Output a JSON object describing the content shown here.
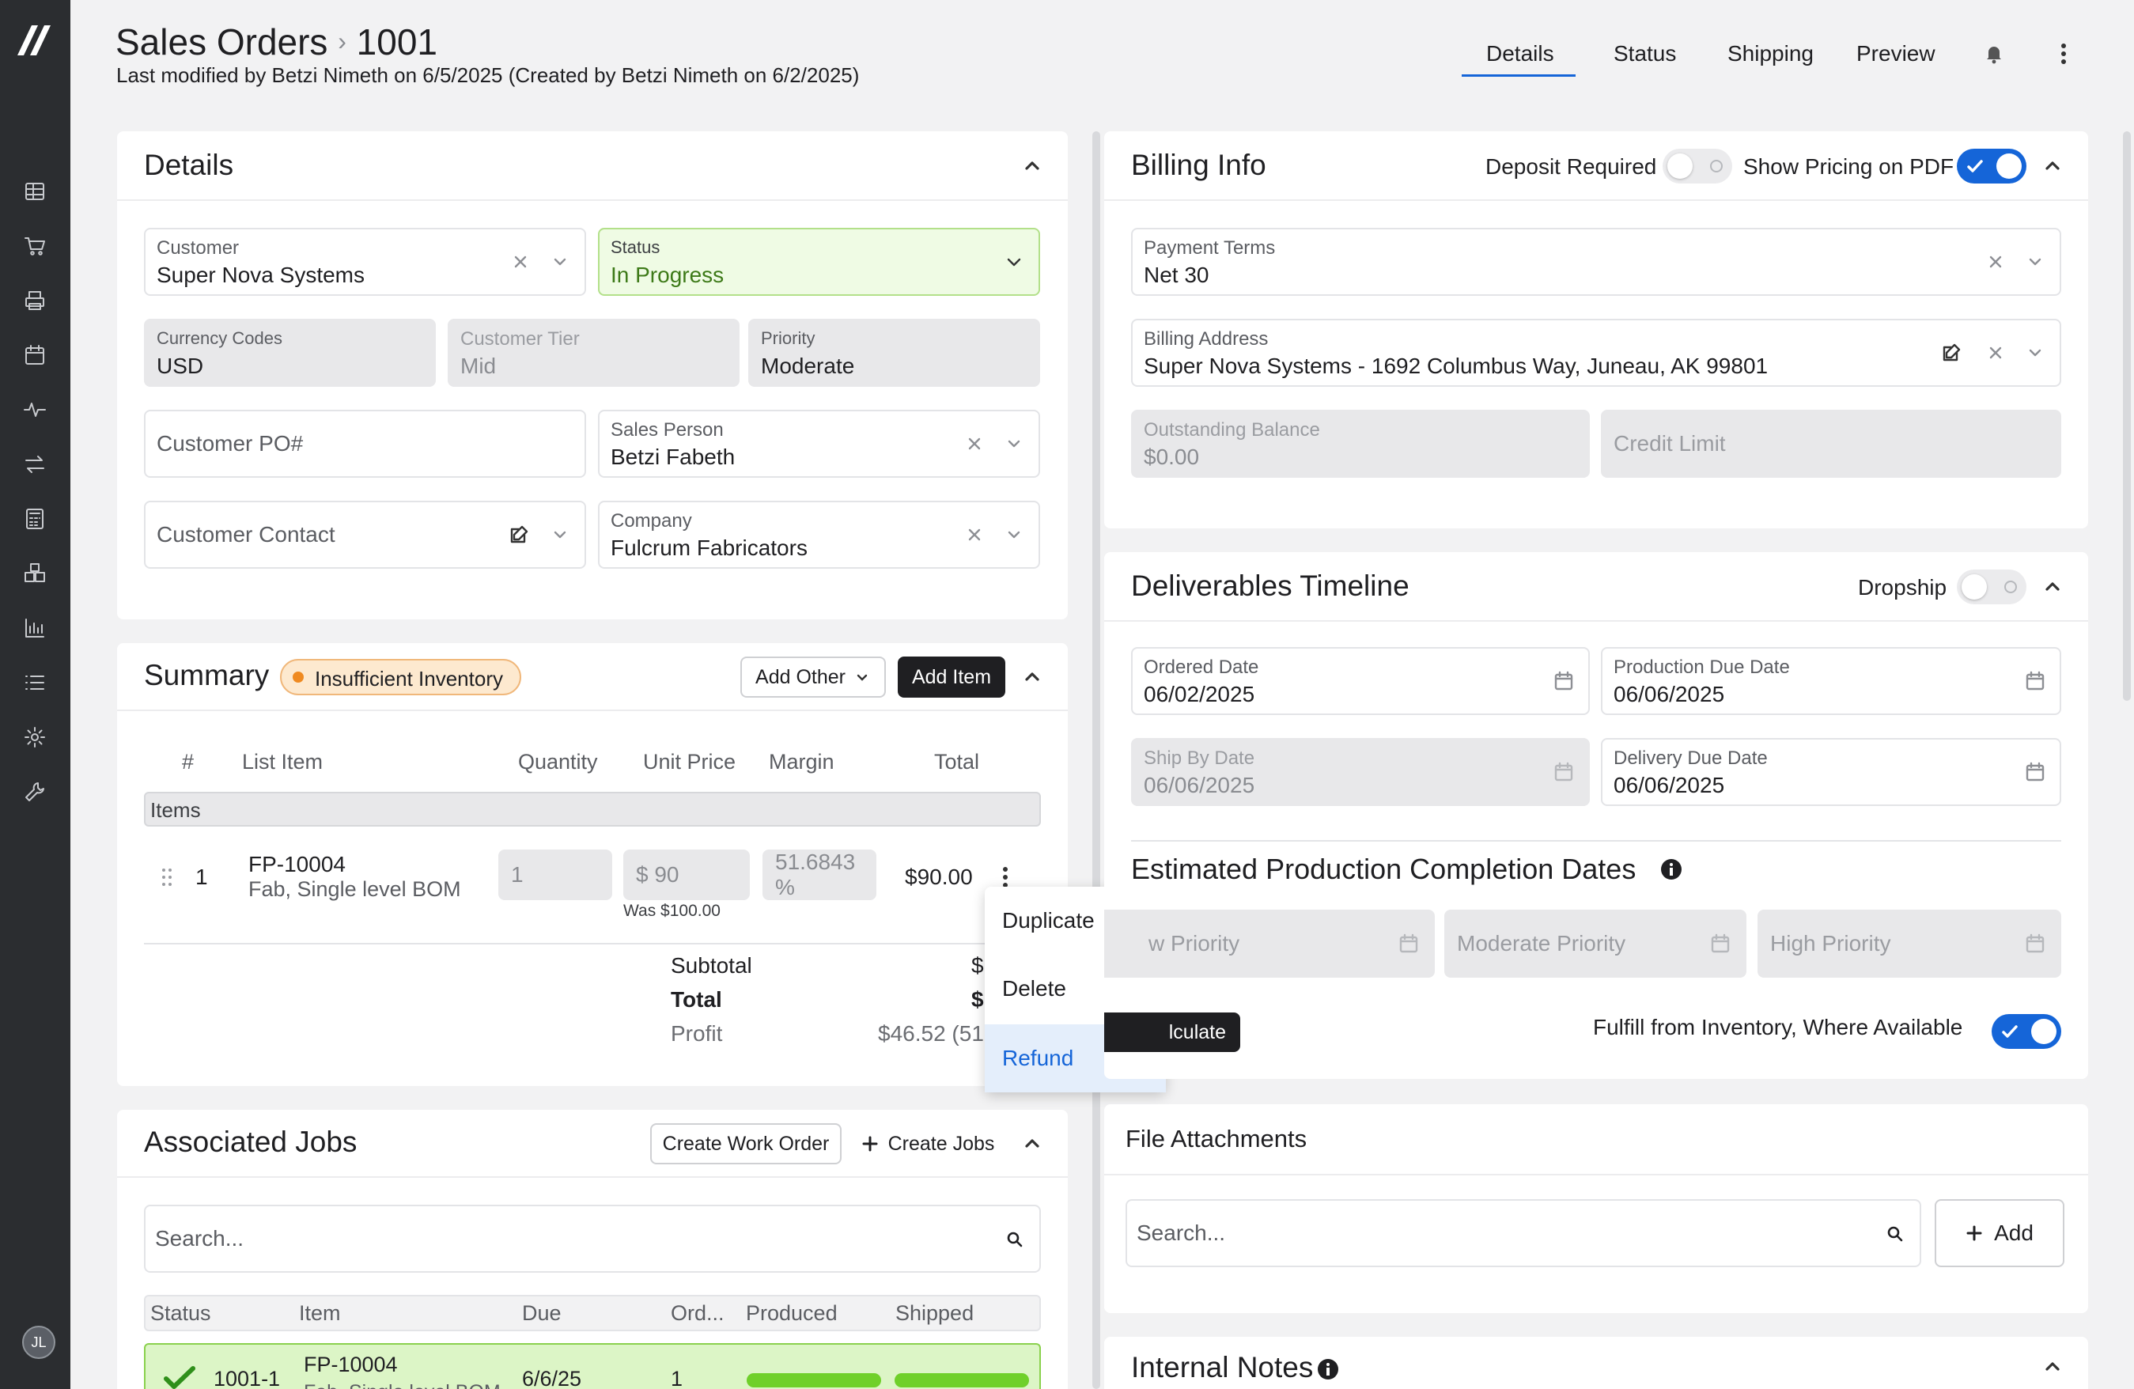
{
  "header": {
    "title": "Sales Orders",
    "breadcrumb_sep": "›",
    "record_id": "1001",
    "subtitle": "Last modified by Betzi Nimeth on 6/5/2025 (Created by Betzi Nimeth on 6/2/2025)",
    "tabs": [
      {
        "label": "Details",
        "active": true
      },
      {
        "label": "Status"
      },
      {
        "label": "Shipping"
      },
      {
        "label": "Preview"
      }
    ]
  },
  "sidebar": {
    "icons": [
      "dashboard-icon",
      "cart-icon",
      "printer-icon",
      "calendar-icon",
      "activity-icon",
      "swap-icon",
      "calculator-icon",
      "boxes-icon",
      "chart-icon",
      "list-icon",
      "gear-icon",
      "wrench-icon"
    ],
    "user_initials": "JL"
  },
  "details": {
    "title": "Details",
    "customer": {
      "label": "Customer",
      "value": "Super Nova Systems"
    },
    "status": {
      "label": "Status",
      "value": "In Progress"
    },
    "currency": {
      "label": "Currency Codes",
      "value": "USD"
    },
    "customer_tier": {
      "label": "Customer Tier",
      "value": "Mid"
    },
    "priority": {
      "label": "Priority",
      "value": "Moderate"
    },
    "customer_po": {
      "placeholder": "Customer PO#"
    },
    "sales_person": {
      "label": "Sales Person",
      "value": "Betzi Fabeth"
    },
    "customer_contact": {
      "placeholder": "Customer Contact"
    },
    "company": {
      "label": "Company",
      "value": "Fulcrum Fabricators"
    }
  },
  "summary": {
    "title": "Summary",
    "badge": "Insufficient Inventory",
    "add_other": "Add Other",
    "add_item": "Add Item",
    "columns": [
      "#",
      "List Item",
      "Quantity",
      "Unit Price",
      "Margin",
      "Total"
    ],
    "group": "Items",
    "item": {
      "num": "1",
      "sku": "FP-10004",
      "desc": "Fab, Single level BOM",
      "qty": "1",
      "unit_price": "$ 90",
      "was": "Was $100.00",
      "margin": "51.6843 %",
      "total": "$90.00"
    },
    "subtotal_label": "Subtotal",
    "subtotal_value": "$",
    "total_label": "Total",
    "total_value": "$",
    "profit_label": "Profit",
    "profit_value": "$46.52 (51."
  },
  "context_menu": {
    "items": [
      {
        "label": "Duplicate",
        "icon": "copy-icon"
      },
      {
        "label": "Delete",
        "icon": "trash-icon"
      },
      {
        "label": "Refund",
        "icon": "refund-icon"
      }
    ]
  },
  "jobs": {
    "title": "Associated Jobs",
    "create_work_order": "Create Work Order",
    "create_jobs": "Create Jobs",
    "search_placeholder": "Search...",
    "columns": [
      "Status",
      "Item",
      "Due",
      "Ord...",
      "Produced",
      "Shipped"
    ],
    "row": {
      "id": "1001-1",
      "item": "FP-10004",
      "item_sub": "Fab, Single level BOM",
      "due": "6/6/25",
      "ordered": "1",
      "produced_fraction": 1.0,
      "shipped_fraction": 1.0
    }
  },
  "billing": {
    "title": "Billing Info",
    "deposit_required": {
      "label": "Deposit Required",
      "on": false
    },
    "show_pricing": {
      "label": "Show Pricing on PDF",
      "on": true
    },
    "payment_terms": {
      "label": "Payment Terms",
      "value": "Net 30"
    },
    "billing_address": {
      "label": "Billing Address",
      "value": "Super Nova Systems - 1692 Columbus Way, Juneau, AK 99801"
    },
    "outstanding_balance": {
      "label": "Outstanding Balance",
      "value": "$0.00"
    },
    "credit_limit": {
      "placeholder": "Credit Limit"
    }
  },
  "timeline": {
    "title": "Deliverables Timeline",
    "dropship": {
      "label": "Dropship",
      "on": false
    },
    "ordered_date": {
      "label": "Ordered Date",
      "value": "06/02/2025"
    },
    "production_due_date": {
      "label": "Production Due Date",
      "value": "06/06/2025"
    },
    "ship_by_date": {
      "label": "Ship By Date",
      "value": "06/06/2025"
    },
    "delivery_due_date": {
      "label": "Delivery Due Date",
      "value": "06/06/2025"
    },
    "estimated_title": "Estimated Production Completion Dates",
    "low_priority": "w Priority",
    "moderate_priority": "Moderate Priority",
    "high_priority": "High Priority",
    "calculate": "lculate",
    "fulfill": {
      "label": "Fulfill from Inventory, Where Available",
      "on": true
    }
  },
  "attachments": {
    "title": "File Attachments",
    "search_placeholder": "Search...",
    "add": "Add"
  },
  "notes": {
    "title": "Internal Notes"
  },
  "colors": {
    "sidebar": "#2b2d30",
    "accent": "#1565d8",
    "status_green": "#effbe4",
    "progress_green": "#6fd02a",
    "warning_orange": "#ef8a21"
  }
}
